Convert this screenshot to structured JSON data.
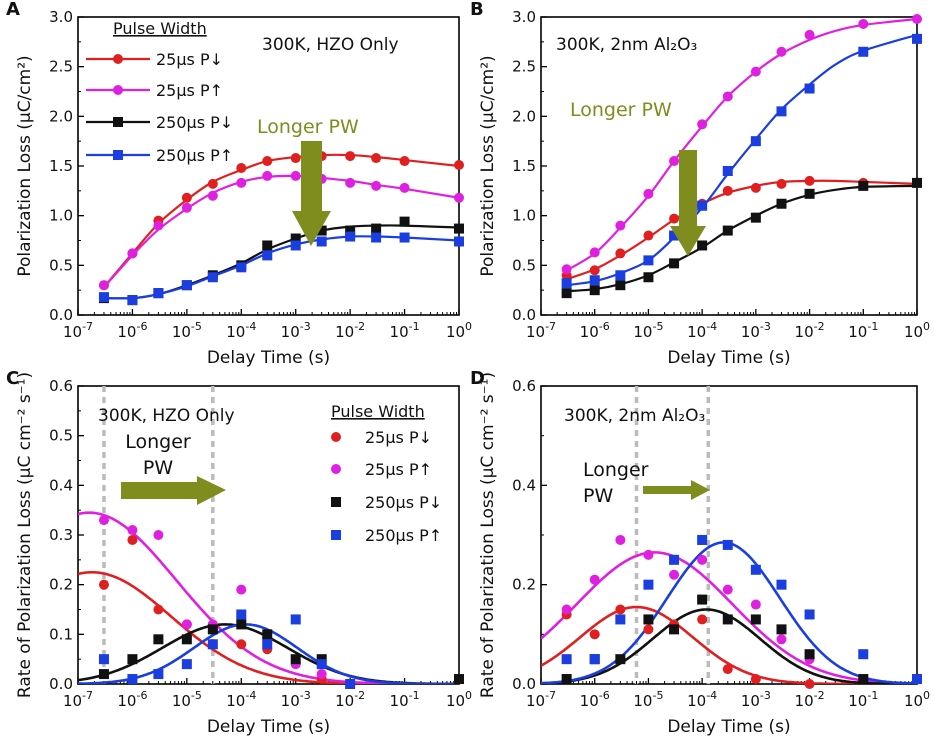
{
  "colors": {
    "red": "#e02020",
    "magenta": "#e020e0",
    "black": "#111111",
    "blue": "#1a3ee0",
    "olive": "#7f8c1e",
    "grid_dash": "#bbbbbb"
  },
  "chart_data": [
    {
      "panel": "A",
      "type": "line",
      "annotation": "300K, HZO Only",
      "xlabel": "Delay Time (s)",
      "ylabel": "Polarization Loss (µC/cm²)",
      "xlog": true,
      "xlim": [
        1e-07,
        1
      ],
      "x_tick_labels": [
        "10-7",
        "10-6",
        "10-5",
        "10-4",
        "10-3",
        "10-2",
        "10-1",
        "100"
      ],
      "ylim": [
        0,
        3
      ],
      "y_ticks": [
        0,
        0.5,
        1,
        1.5,
        2,
        2.5,
        3
      ],
      "y_tick_labels": [
        "0.0",
        "0.5",
        "1.0",
        "1.5",
        "2.0",
        "2.5",
        "3.0"
      ],
      "legend_title": "Pulse Width",
      "arrow_label": "Longer PW",
      "series": [
        {
          "name": "25µs P↓",
          "color": "red",
          "marker": "circle",
          "x": [
            3e-07,
            1e-06,
            3e-06,
            1e-05,
            3e-05,
            0.0001,
            0.0003,
            0.001,
            0.003,
            0.01,
            0.03,
            0.1,
            1
          ],
          "y": [
            0.3,
            0.62,
            0.95,
            1.18,
            1.32,
            1.48,
            1.55,
            1.58,
            1.6,
            1.6,
            1.58,
            1.55,
            1.51
          ]
        },
        {
          "name": "25µs P↑",
          "color": "magenta",
          "marker": "circle",
          "x": [
            3e-07,
            1e-06,
            3e-06,
            1e-05,
            3e-05,
            0.0001,
            0.0003,
            0.001,
            0.003,
            0.01,
            0.03,
            0.1,
            1
          ],
          "y": [
            0.3,
            0.62,
            0.9,
            1.08,
            1.2,
            1.33,
            1.4,
            1.4,
            1.37,
            1.33,
            1.3,
            1.28,
            1.18
          ]
        },
        {
          "name": "250µs P↓",
          "color": "black",
          "marker": "square",
          "x": [
            3e-07,
            1e-06,
            3e-06,
            1e-05,
            3e-05,
            0.0001,
            0.0003,
            0.001,
            0.003,
            0.01,
            0.03,
            0.1,
            1
          ],
          "y": [
            0.17,
            0.15,
            0.22,
            0.3,
            0.4,
            0.5,
            0.7,
            0.77,
            0.85,
            0.85,
            0.87,
            0.94,
            0.87
          ]
        },
        {
          "name": "250µs P↑",
          "color": "blue",
          "marker": "square",
          "x": [
            3e-07,
            1e-06,
            3e-06,
            1e-05,
            3e-05,
            0.0001,
            0.0003,
            0.001,
            0.003,
            0.01,
            0.03,
            0.1,
            1
          ],
          "y": [
            0.18,
            0.15,
            0.22,
            0.3,
            0.38,
            0.48,
            0.6,
            0.7,
            0.74,
            0.79,
            0.78,
            0.78,
            0.74
          ]
        }
      ],
      "fits": [
        {
          "color": "red",
          "x": [
            3e-07,
            1e-06,
            3e-06,
            1e-05,
            3e-05,
            0.0001,
            0.0003,
            0.001,
            0.003,
            0.01,
            0.03,
            0.1,
            1
          ],
          "y": [
            0.28,
            0.62,
            0.92,
            1.16,
            1.34,
            1.46,
            1.55,
            1.59,
            1.61,
            1.61,
            1.59,
            1.56,
            1.5
          ]
        },
        {
          "color": "magenta",
          "x": [
            3e-07,
            1e-06,
            3e-06,
            1e-05,
            3e-05,
            0.0001,
            0.0003,
            0.001,
            0.003,
            0.01,
            0.03,
            0.1,
            1
          ],
          "y": [
            0.28,
            0.6,
            0.86,
            1.07,
            1.23,
            1.34,
            1.39,
            1.4,
            1.38,
            1.35,
            1.31,
            1.27,
            1.18
          ]
        },
        {
          "color": "black",
          "x": [
            3e-07,
            1e-06,
            3e-06,
            1e-05,
            3e-05,
            0.0001,
            0.0003,
            0.001,
            0.003,
            0.01,
            0.03,
            0.1,
            1
          ],
          "y": [
            0.17,
            0.17,
            0.21,
            0.3,
            0.4,
            0.52,
            0.66,
            0.77,
            0.85,
            0.89,
            0.9,
            0.9,
            0.88
          ]
        },
        {
          "color": "blue",
          "x": [
            3e-07,
            1e-06,
            3e-06,
            1e-05,
            3e-05,
            0.0001,
            0.0003,
            0.001,
            0.003,
            0.01,
            0.03,
            0.1,
            1
          ],
          "y": [
            0.17,
            0.17,
            0.21,
            0.29,
            0.39,
            0.5,
            0.62,
            0.71,
            0.76,
            0.79,
            0.79,
            0.78,
            0.75
          ]
        }
      ]
    },
    {
      "panel": "B",
      "type": "line",
      "annotation": "300K, 2nm Al₂O₃",
      "xlabel": "Delay Time (s)",
      "ylabel": "Polarization Loss (µC/cm²)",
      "xlog": true,
      "xlim": [
        1e-07,
        1
      ],
      "x_tick_labels": [
        "10-7",
        "10-6",
        "10-5",
        "10-4",
        "10-3",
        "10-2",
        "10-1",
        "100"
      ],
      "ylim": [
        0,
        3
      ],
      "y_ticks": [
        0,
        0.5,
        1,
        1.5,
        2,
        2.5,
        3
      ],
      "y_tick_labels": [
        "0.0",
        "0.5",
        "1.0",
        "1.5",
        "2.0",
        "2.5",
        "3.0"
      ],
      "arrow_label": "Longer PW",
      "series": [
        {
          "name": "25µs P↓",
          "color": "red",
          "marker": "circle",
          "x": [
            3e-07,
            1e-06,
            3e-06,
            1e-05,
            3e-05,
            0.0001,
            0.0003,
            0.001,
            0.003,
            0.01,
            0.1,
            1
          ],
          "y": [
            0.4,
            0.45,
            0.62,
            0.8,
            0.97,
            1.12,
            1.25,
            1.28,
            1.32,
            1.35,
            1.33,
            1.33
          ]
        },
        {
          "name": "25µs P↑",
          "color": "magenta",
          "marker": "circle",
          "x": [
            3e-07,
            1e-06,
            3e-06,
            1e-05,
            3e-05,
            0.0001,
            0.0003,
            0.001,
            0.003,
            0.01,
            0.1,
            1
          ],
          "y": [
            0.46,
            0.63,
            0.9,
            1.22,
            1.55,
            1.92,
            2.2,
            2.45,
            2.65,
            2.82,
            2.93,
            2.98
          ]
        },
        {
          "name": "250µs P↓",
          "color": "black",
          "marker": "square",
          "x": [
            3e-07,
            1e-06,
            3e-06,
            1e-05,
            3e-05,
            0.0001,
            0.0003,
            0.001,
            0.003,
            0.01,
            0.1,
            1
          ],
          "y": [
            0.22,
            0.25,
            0.3,
            0.38,
            0.52,
            0.7,
            0.85,
            0.98,
            1.12,
            1.22,
            1.3,
            1.33
          ]
        },
        {
          "name": "250µs P↑",
          "color": "blue",
          "marker": "square",
          "x": [
            3e-07,
            1e-06,
            3e-06,
            1e-05,
            3e-05,
            0.0001,
            0.0003,
            0.001,
            0.003,
            0.01,
            0.1,
            1
          ],
          "y": [
            0.32,
            0.35,
            0.4,
            0.55,
            0.8,
            1.1,
            1.45,
            1.75,
            2.05,
            2.28,
            2.65,
            2.78
          ]
        }
      ],
      "fits": [
        {
          "color": "red",
          "x": [
            3e-07,
            1e-06,
            3e-06,
            1e-05,
            3e-05,
            0.0001,
            0.0003,
            0.001,
            0.003,
            0.01,
            0.03,
            0.1,
            1
          ],
          "y": [
            0.36,
            0.46,
            0.6,
            0.78,
            0.96,
            1.12,
            1.23,
            1.3,
            1.34,
            1.35,
            1.35,
            1.34,
            1.32
          ]
        },
        {
          "color": "magenta",
          "x": [
            3e-07,
            1e-06,
            3e-06,
            1e-05,
            3e-05,
            0.0001,
            0.0003,
            0.001,
            0.003,
            0.01,
            0.03,
            0.1,
            1
          ],
          "y": [
            0.45,
            0.62,
            0.88,
            1.2,
            1.55,
            1.9,
            2.2,
            2.45,
            2.63,
            2.77,
            2.86,
            2.92,
            2.98
          ]
        },
        {
          "color": "black",
          "x": [
            3e-07,
            1e-06,
            3e-06,
            1e-05,
            3e-05,
            0.0001,
            0.0003,
            0.001,
            0.003,
            0.01,
            0.03,
            0.1,
            1
          ],
          "y": [
            0.24,
            0.26,
            0.31,
            0.4,
            0.53,
            0.68,
            0.85,
            1.0,
            1.12,
            1.21,
            1.26,
            1.29,
            1.3
          ]
        },
        {
          "color": "blue",
          "x": [
            3e-07,
            1e-06,
            3e-06,
            1e-05,
            3e-05,
            0.0001,
            0.0003,
            0.001,
            0.003,
            0.01,
            0.03,
            0.1,
            1
          ],
          "y": [
            0.3,
            0.34,
            0.42,
            0.55,
            0.78,
            1.08,
            1.42,
            1.77,
            2.07,
            2.32,
            2.52,
            2.66,
            2.82
          ]
        }
      ]
    },
    {
      "panel": "C",
      "type": "line",
      "annotation": "300K, HZO Only",
      "xlabel": "Delay Time (s)",
      "ylabel": "Rate of Polarization Loss (µC cm⁻² s⁻¹)",
      "xlog": true,
      "xlim": [
        1e-07,
        1
      ],
      "x_tick_labels": [
        "10-7",
        "10-6",
        "10-5",
        "10-4",
        "10-3",
        "10-2",
        "10-1",
        "100"
      ],
      "ylim": [
        0,
        0.6
      ],
      "y_ticks": [
        0,
        0.1,
        0.2,
        0.3,
        0.4,
        0.5,
        0.6
      ],
      "y_tick_labels": [
        "0.0",
        "0.1",
        "0.2",
        "0.3",
        "0.4",
        "0.5",
        "0.6"
      ],
      "legend_title": "Pulse Width",
      "arrow_label_line1": "Longer",
      "arrow_label_line2": "PW",
      "dashed_x": [
        3e-07,
        3e-05
      ],
      "series": [
        {
          "name": "25µs P↓",
          "color": "red",
          "marker": "circle",
          "x": [
            3e-07,
            1e-06,
            3e-06,
            1e-05,
            3e-05,
            0.0001,
            0.0003,
            0.001,
            0.003,
            0.01
          ],
          "y": [
            0.2,
            0.29,
            0.15,
            0.12,
            0.11,
            0.08,
            0.07,
            0.04,
            0.01,
            0.0
          ]
        },
        {
          "name": "25µs P↑",
          "color": "magenta",
          "marker": "circle",
          "x": [
            3e-07,
            1e-06,
            3e-06,
            1e-05,
            3e-05,
            0.0001,
            0.0003,
            0.001,
            0.003,
            0.01
          ],
          "y": [
            0.33,
            0.31,
            0.3,
            0.12,
            0.12,
            0.19,
            0.09,
            0.04,
            0.02,
            0.0
          ]
        },
        {
          "name": "250µs P↓",
          "color": "black",
          "marker": "square",
          "x": [
            3e-07,
            1e-06,
            3e-06,
            1e-05,
            3e-05,
            0.0001,
            0.0003,
            0.001,
            0.003,
            1
          ],
          "y": [
            0.02,
            0.05,
            0.09,
            0.09,
            0.11,
            0.12,
            0.1,
            0.05,
            0.05,
            0.01
          ]
        },
        {
          "name": "250µs P↑",
          "color": "blue",
          "marker": "square",
          "x": [
            3e-07,
            1e-06,
            3e-06,
            1e-05,
            3e-05,
            0.0001,
            0.0003,
            0.001,
            0.003,
            0.01
          ],
          "y": [
            0.05,
            0.01,
            0.02,
            0.04,
            0.08,
            0.14,
            0.08,
            0.13,
            0.04,
            0.0
          ]
        }
      ],
      "gaussians": [
        {
          "color": "red",
          "amp": 0.225,
          "center": 1.8e-07,
          "sigma_decades": 1.45
        },
        {
          "color": "magenta",
          "amp": 0.345,
          "center": 1.6e-07,
          "sigma_decades": 1.6
        },
        {
          "color": "black",
          "amp": 0.12,
          "center": 5e-05,
          "sigma_decades": 1.15
        },
        {
          "color": "blue",
          "amp": 0.12,
          "center": 0.00012,
          "sigma_decades": 0.95
        }
      ]
    },
    {
      "panel": "D",
      "type": "line",
      "annotation": "300K, 2nm Al₂O₃",
      "xlabel": "Delay Time (s)",
      "ylabel": "Rate of Polarization Loss (µC cm⁻² s⁻¹)",
      "xlog": true,
      "xlim": [
        1e-07,
        1
      ],
      "x_tick_labels": [
        "10-7",
        "10-6",
        "10-5",
        "10-4",
        "10-3",
        "10-2",
        "10-1",
        "100"
      ],
      "ylim": [
        0,
        0.6
      ],
      "y_ticks": [
        0,
        0.2,
        0.4,
        0.6
      ],
      "y_tick_labels": [
        "0.0",
        "0.2",
        "0.4",
        "0.6"
      ],
      "arrow_label_line1": "Longer",
      "arrow_label_line2": "PW",
      "dashed_x": [
        6e-06,
        0.00013
      ],
      "series": [
        {
          "name": "25µs P↓",
          "color": "red",
          "marker": "circle",
          "x": [
            3e-07,
            1e-06,
            3e-06,
            1e-05,
            3e-05,
            0.0001,
            0.0003,
            0.001,
            0.01
          ],
          "y": [
            0.14,
            0.1,
            0.15,
            0.11,
            0.12,
            0.13,
            0.03,
            0.01,
            0.0
          ]
        },
        {
          "name": "25µs P↑",
          "color": "magenta",
          "marker": "circle",
          "x": [
            3e-07,
            1e-06,
            3e-06,
            1e-05,
            3e-05,
            0.0001,
            0.0003,
            0.001,
            0.003,
            0.01
          ],
          "y": [
            0.15,
            0.21,
            0.29,
            0.26,
            0.22,
            0.25,
            0.19,
            0.16,
            0.09,
            0.05
          ]
        },
        {
          "name": "250µs P↓",
          "color": "black",
          "marker": "square",
          "x": [
            3e-07,
            1e-06,
            3e-06,
            1e-05,
            3e-05,
            0.0001,
            0.0003,
            0.001,
            0.003,
            0.01,
            0.1,
            1
          ],
          "y": [
            0.01,
            0.05,
            0.05,
            0.13,
            0.11,
            0.17,
            0.13,
            0.13,
            0.11,
            0.06,
            0.01,
            0.01
          ]
        },
        {
          "name": "250µs P↑",
          "color": "blue",
          "marker": "square",
          "x": [
            3e-07,
            1e-06,
            3e-06,
            1e-05,
            3e-05,
            0.0001,
            0.0003,
            0.001,
            0.003,
            0.01,
            0.1,
            1
          ],
          "y": [
            0.05,
            0.05,
            0.13,
            0.2,
            0.25,
            0.29,
            0.28,
            0.23,
            0.2,
            0.14,
            0.06,
            0.01
          ]
        }
      ],
      "gaussians": [
        {
          "color": "red",
          "amp": 0.155,
          "center": 6e-06,
          "sigma_decades": 1.05
        },
        {
          "color": "magenta",
          "amp": 0.265,
          "center": 1.3e-05,
          "sigma_decades": 1.45
        },
        {
          "color": "black",
          "amp": 0.15,
          "center": 0.00012,
          "sigma_decades": 1.0
        },
        {
          "color": "blue",
          "amp": 0.285,
          "center": 0.00025,
          "sigma_decades": 1.05
        }
      ]
    }
  ]
}
